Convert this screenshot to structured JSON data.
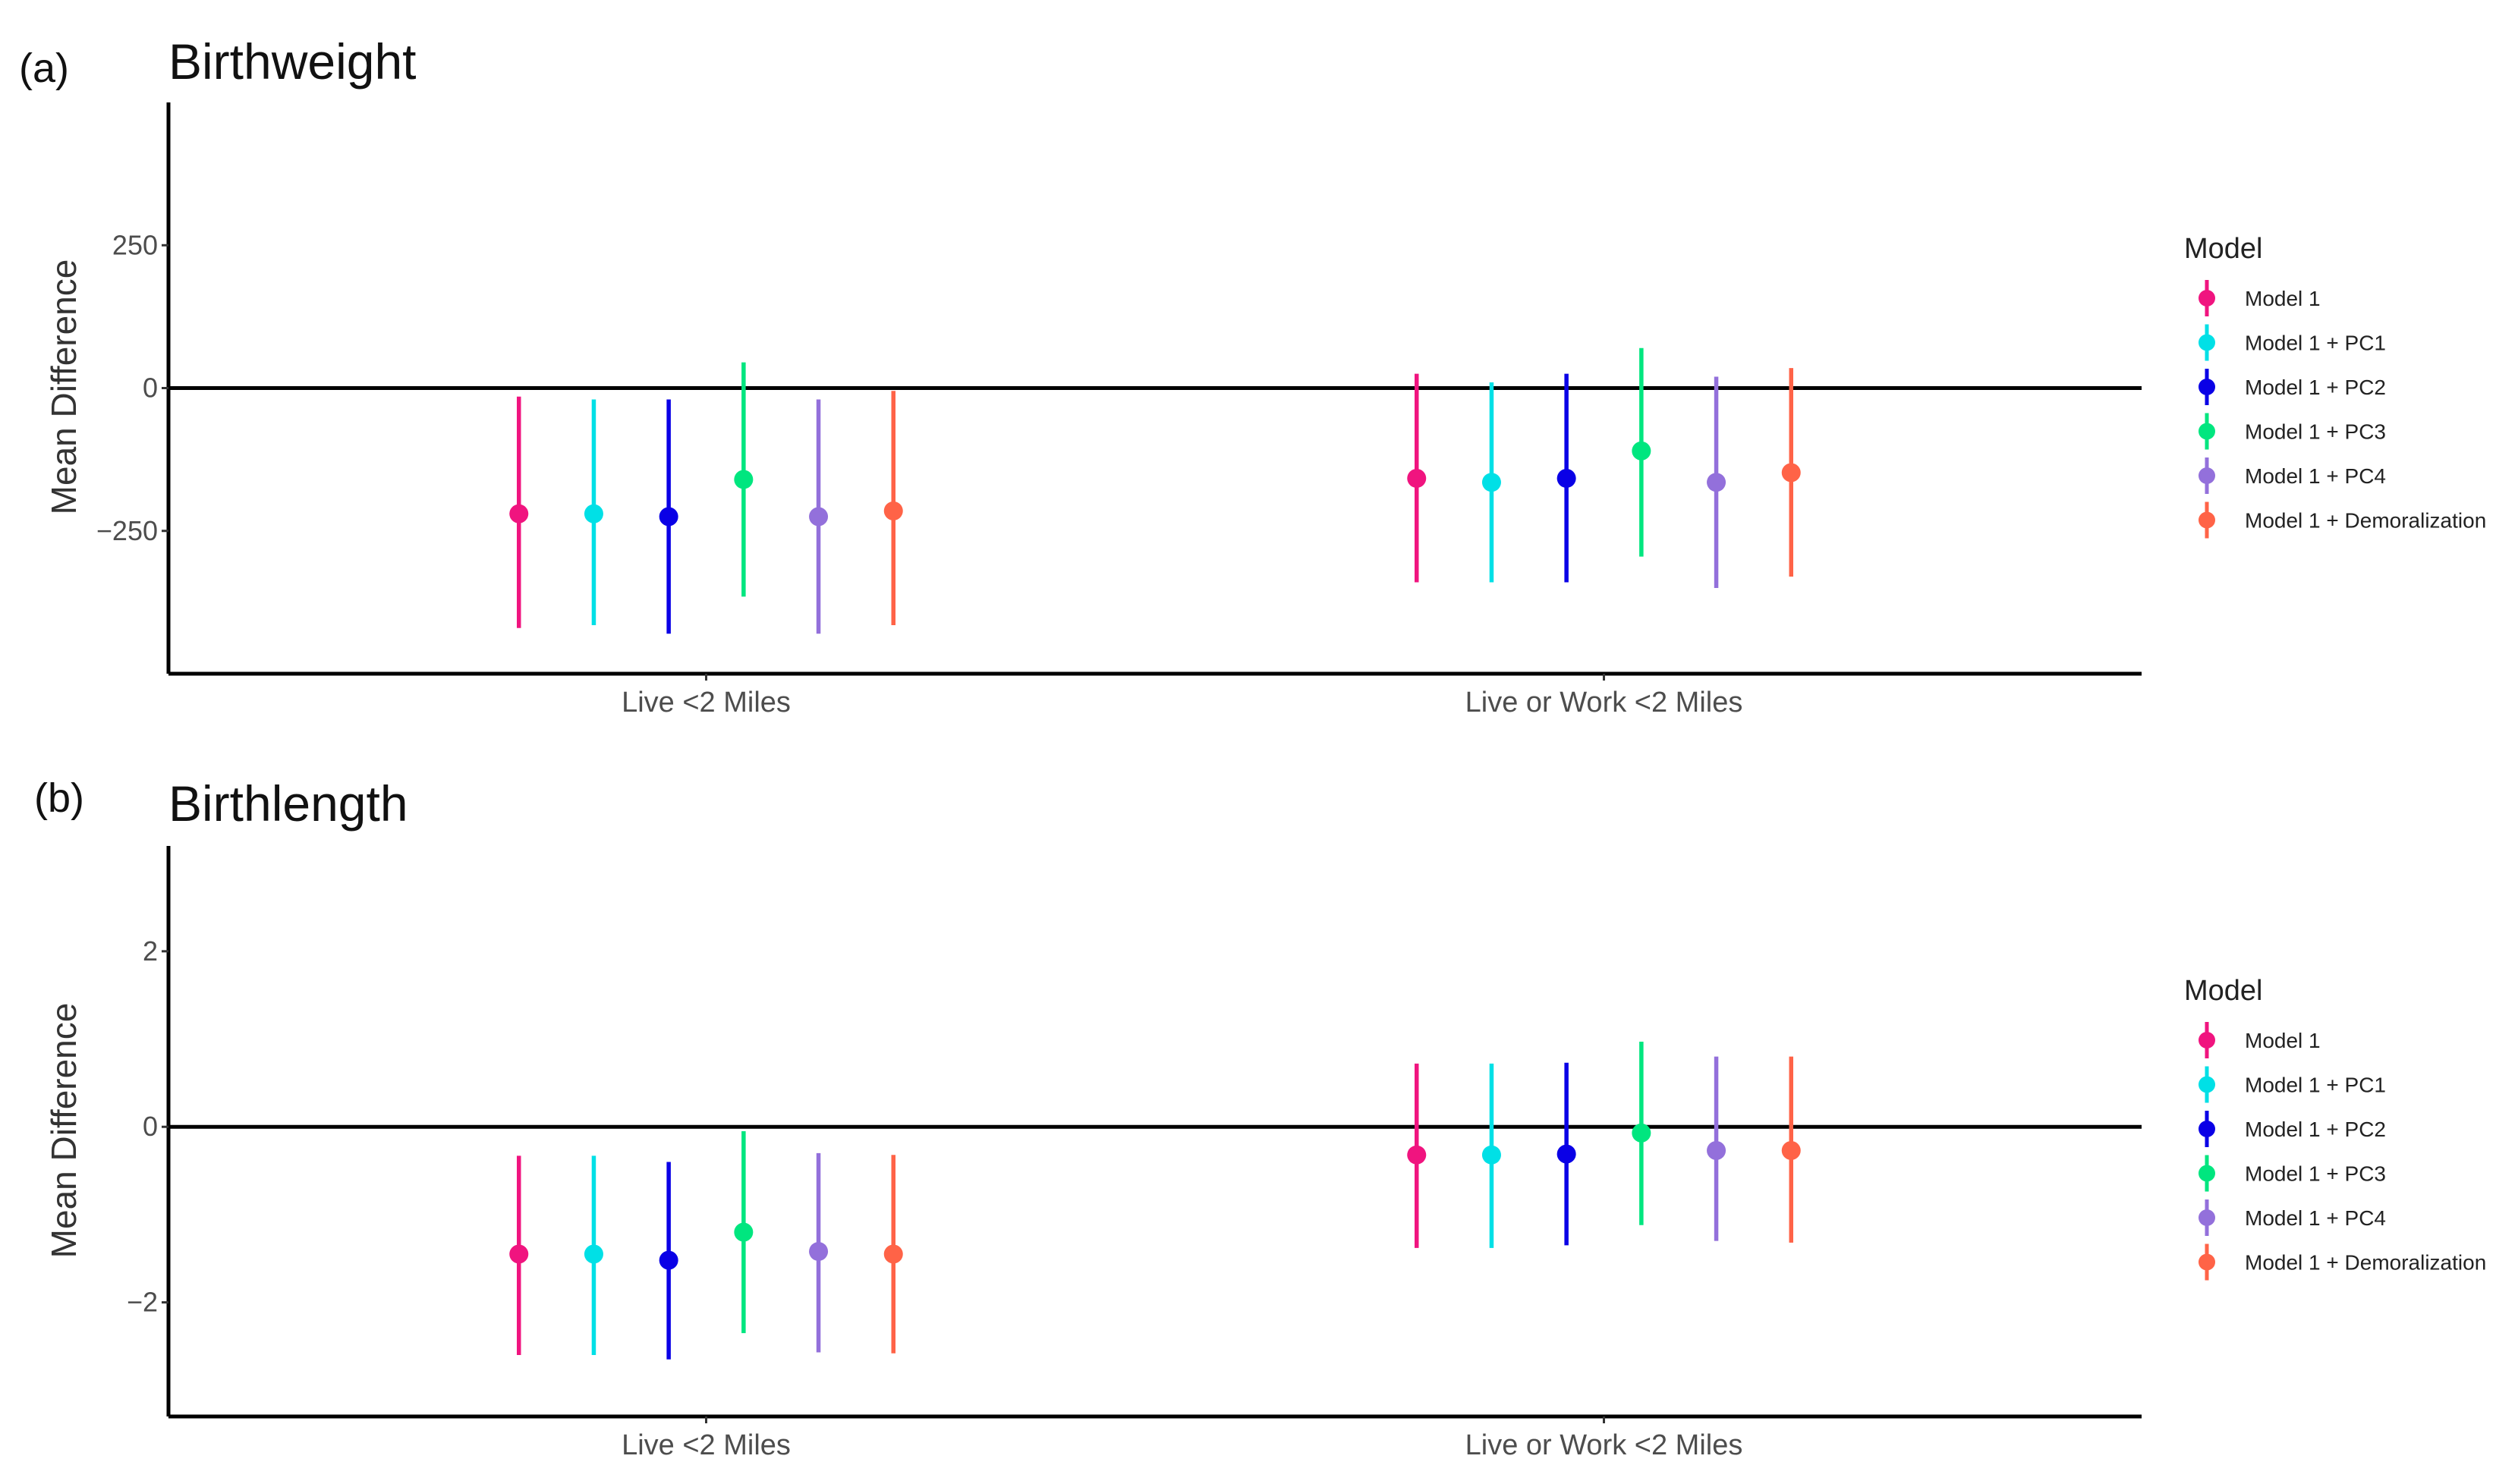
{
  "chart_data": [
    {
      "panel_label": "(a)",
      "type": "scatter",
      "subtype": "point-range",
      "title": "Birthweight",
      "xlabel": "",
      "ylabel": "Mean Difference",
      "yticks": [
        -250,
        0,
        250
      ],
      "ylim": [
        -500,
        500
      ],
      "categories": [
        "Live <2 Miles",
        "Live or Work <2 Miles"
      ],
      "reference_line": 0,
      "grid": false,
      "legend": {
        "title": "Model",
        "position": "right"
      },
      "series": [
        {
          "name": "Model 1",
          "color": "#F0147F",
          "estimate": [
            -220,
            -158
          ],
          "lower": [
            -420,
            -340
          ],
          "upper": [
            -15,
            25
          ]
        },
        {
          "name": "Model 1 + PC1",
          "color": "#00E0E6",
          "estimate": [
            -220,
            -165
          ],
          "lower": [
            -415,
            -340
          ],
          "upper": [
            -20,
            10
          ]
        },
        {
          "name": "Model 1 + PC2",
          "color": "#0A00E6",
          "estimate": [
            -225,
            -158
          ],
          "lower": [
            -430,
            -340
          ],
          "upper": [
            -20,
            25
          ]
        },
        {
          "name": "Model 1 + PC3",
          "color": "#00E67F",
          "estimate": [
            -160,
            -110
          ],
          "lower": [
            -365,
            -295
          ],
          "upper": [
            45,
            70
          ]
        },
        {
          "name": "Model 1 + PC4",
          "color": "#9370DB",
          "estimate": [
            -225,
            -165
          ],
          "lower": [
            -430,
            -350
          ],
          "upper": [
            -20,
            20
          ]
        },
        {
          "name": "Model 1 + Demoralization",
          "color": "#FF6347",
          "estimate": [
            -215,
            -148
          ],
          "lower": [
            -415,
            -330
          ],
          "upper": [
            -5,
            35
          ]
        }
      ]
    },
    {
      "panel_label": "(b)",
      "type": "scatter",
      "subtype": "point-range",
      "title": "Birthlength",
      "xlabel": "",
      "ylabel": "Mean Difference",
      "yticks": [
        -2,
        0,
        2
      ],
      "ylim": [
        -3.3,
        3.2
      ],
      "categories": [
        "Live <2 Miles",
        "Live or Work <2 Miles"
      ],
      "reference_line": 0,
      "grid": false,
      "legend": {
        "title": "Model",
        "position": "right"
      },
      "series": [
        {
          "name": "Model 1",
          "color": "#F0147F",
          "estimate": [
            -1.45,
            -0.32
          ],
          "lower": [
            -2.6,
            -1.38
          ],
          "upper": [
            -0.33,
            0.72
          ]
        },
        {
          "name": "Model 1 + PC1",
          "color": "#00E0E6",
          "estimate": [
            -1.45,
            -0.32
          ],
          "lower": [
            -2.6,
            -1.38
          ],
          "upper": [
            -0.33,
            0.72
          ]
        },
        {
          "name": "Model 1 + PC2",
          "color": "#0A00E6",
          "estimate": [
            -1.52,
            -0.31
          ],
          "lower": [
            -2.65,
            -1.35
          ],
          "upper": [
            -0.4,
            0.73
          ]
        },
        {
          "name": "Model 1 + PC3",
          "color": "#00E67F",
          "estimate": [
            -1.2,
            -0.07
          ],
          "lower": [
            -2.35,
            -1.12
          ],
          "upper": [
            -0.05,
            0.97
          ]
        },
        {
          "name": "Model 1 + PC4",
          "color": "#9370DB",
          "estimate": [
            -1.42,
            -0.27
          ],
          "lower": [
            -2.57,
            -1.3
          ],
          "upper": [
            -0.3,
            0.8
          ]
        },
        {
          "name": "Model 1 + Demoralization",
          "color": "#FF6347",
          "estimate": [
            -1.45,
            -0.27
          ],
          "lower": [
            -2.58,
            -1.32
          ],
          "upper": [
            -0.32,
            0.8
          ]
        }
      ]
    }
  ]
}
